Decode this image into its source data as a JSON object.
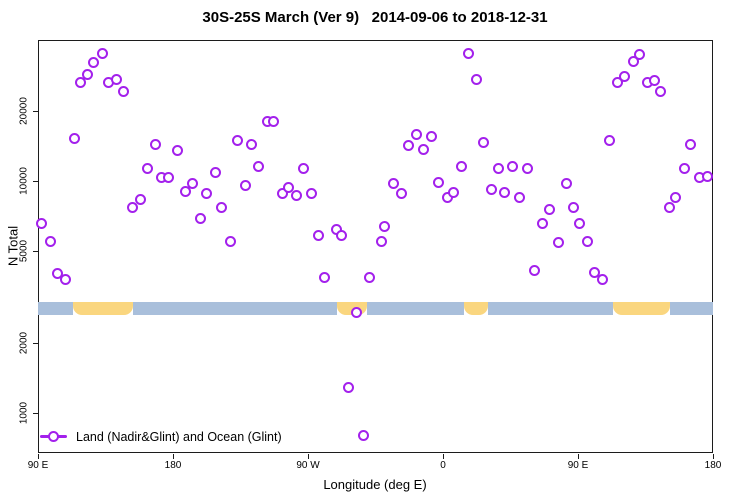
{
  "title": "30S-25S March (Ver 9)   2014-09-06 to 2018-12-31",
  "x_axis_label": "Longitude (deg E)",
  "y_axis_label": "N Total",
  "legend": {
    "label": "Land (Nadir&Glint) and Ocean (Glint)"
  },
  "colors": {
    "marker": "#A320EC",
    "ocean_band": "#A9BFDB",
    "land_band": "#FAD67F",
    "axis": "#1c1c1c"
  },
  "chart_data": {
    "type": "scatter",
    "title": "30S-25S March (Ver 9)   2014-09-06 to 2018-12-31",
    "xlabel": "Longitude (deg E)",
    "ylabel": "N Total",
    "y_scale": "log",
    "grid": false,
    "legend_position": "bottom-left-inside",
    "x_axis": {
      "range_deg": [
        90,
        540
      ],
      "ticks_deg": [
        90,
        180,
        270,
        360,
        450,
        540
      ],
      "tick_labels": [
        "90 E",
        "180",
        "90 W",
        "0",
        "90 E",
        "180"
      ]
    },
    "y_axis": {
      "range": [
        670,
        40500
      ],
      "ticks": [
        1000,
        2000,
        5000,
        10000,
        20000
      ],
      "tick_labels": [
        "1000",
        "2000",
        "5000",
        "10000",
        "20000"
      ]
    },
    "series": [
      {
        "name": "Land (Nadir&Glint) and Ocean (Glint)",
        "marker": "open-circle",
        "color": "#A320EC",
        "points_lon_n": [
          [
            133,
            35300
          ],
          [
            127,
            32300
          ],
          [
            123,
            28900
          ],
          [
            118,
            26700
          ],
          [
            137,
            26500
          ],
          [
            142,
            27500
          ],
          [
            147,
            24200
          ],
          [
            114,
            15200
          ],
          [
            168,
            14300
          ],
          [
            183,
            13500
          ],
          [
            243,
            18000
          ],
          [
            247,
            18000
          ],
          [
            223,
            14900
          ],
          [
            232,
            14300
          ],
          [
            237,
            11600
          ],
          [
            267,
            11300
          ],
          [
            163,
            11300
          ],
          [
            172,
            10400
          ],
          [
            177,
            10400
          ],
          [
            188,
            8970
          ],
          [
            193,
            9710
          ],
          [
            202,
            8790
          ],
          [
            208,
            10900
          ],
          [
            212,
            7650
          ],
          [
            228,
            9520
          ],
          [
            253,
            8790
          ],
          [
            257,
            9420
          ],
          [
            262,
            8700
          ],
          [
            272,
            8790
          ],
          [
            153,
            7650
          ],
          [
            158,
            8360
          ],
          [
            198,
            6860
          ],
          [
            218,
            5510
          ],
          [
            277,
            5850
          ],
          [
            289,
            6150
          ],
          [
            292,
            5850
          ],
          [
            92,
            6590
          ],
          [
            98,
            5510
          ],
          [
            377,
            35300
          ],
          [
            382,
            27500
          ],
          [
            487,
            32600
          ],
          [
            491,
            35000
          ],
          [
            476,
            26700
          ],
          [
            481,
            28100
          ],
          [
            496,
            26500
          ],
          [
            501,
            27000
          ],
          [
            505,
            24200
          ],
          [
            342,
            15800
          ],
          [
            352,
            15500
          ],
          [
            337,
            14200
          ],
          [
            347,
            13700
          ],
          [
            387,
            14700
          ],
          [
            471,
            15000
          ],
          [
            525,
            14400
          ],
          [
            372,
            11500
          ],
          [
            397,
            11300
          ],
          [
            406,
            11500
          ],
          [
            416,
            11300
          ],
          [
            521,
            11300
          ],
          [
            531,
            10400
          ],
          [
            536,
            10500
          ],
          [
            327,
            9800
          ],
          [
            332,
            8790
          ],
          [
            357,
            9900
          ],
          [
            363,
            8530
          ],
          [
            367,
            8880
          ],
          [
            392,
            9150
          ],
          [
            401,
            8880
          ],
          [
            411,
            8530
          ],
          [
            442,
            9800
          ],
          [
            431,
            7570
          ],
          [
            447,
            7650
          ],
          [
            426,
            6530
          ],
          [
            451,
            6590
          ],
          [
            511,
            7650
          ],
          [
            515,
            8530
          ],
          [
            321,
            6340
          ],
          [
            319,
            5460
          ],
          [
            437,
            5410
          ],
          [
            456,
            5510
          ],
          [
            103,
            4010
          ],
          [
            108,
            3780
          ],
          [
            281,
            3850
          ],
          [
            311,
            3820
          ],
          [
            302,
            2700
          ],
          [
            297,
            1290
          ],
          [
            307,
            796
          ],
          [
            421,
            4130
          ],
          [
            461,
            4050
          ],
          [
            466,
            3780
          ]
        ]
      }
    ],
    "land_ocean_band": {
      "value_range": [
        2650,
        3010
      ],
      "ocean_color": "#A9BFDB",
      "land_color": "#FAD67F",
      "segments": [
        {
          "type": "ocean",
          "from_deg": 90,
          "to_deg": 113
        },
        {
          "type": "land",
          "from_deg": 113,
          "to_deg": 153
        },
        {
          "type": "ocean",
          "from_deg": 153,
          "to_deg": 289
        },
        {
          "type": "land",
          "from_deg": 289,
          "to_deg": 309
        },
        {
          "type": "ocean",
          "from_deg": 309,
          "to_deg": 374
        },
        {
          "type": "land",
          "from_deg": 374,
          "to_deg": 390
        },
        {
          "type": "ocean",
          "from_deg": 390,
          "to_deg": 473
        },
        {
          "type": "land",
          "from_deg": 473,
          "to_deg": 511
        },
        {
          "type": "ocean",
          "from_deg": 511,
          "to_deg": 540
        }
      ]
    }
  }
}
